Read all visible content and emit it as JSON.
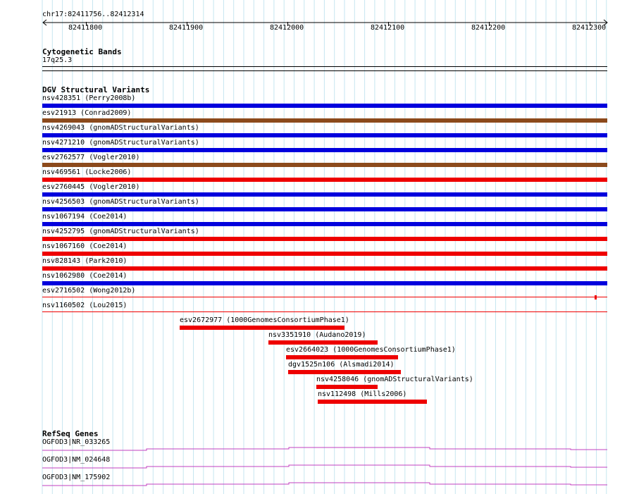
{
  "ruler": {
    "location": "chr17:82411756..82412314",
    "ticks": [
      "82411800",
      "82411900",
      "82412000",
      "82412100",
      "82412200",
      "82412300"
    ]
  },
  "cytobands": {
    "title": "Cytogenetic Bands",
    "band": "17q25.3"
  },
  "dgv": {
    "title": "DGV Structural Variants",
    "colors": {
      "blue": "#0000dd",
      "brown": "#8b4a1c",
      "red": "#ee0000"
    },
    "full_width": [
      {
        "label": "nsv428351 (Perry2008b)",
        "color": "blue"
      },
      {
        "label": "esv21913 (Conrad2009)",
        "color": "brown"
      },
      {
        "label": "nsv4269043 (gnomADStructuralVariants)",
        "color": "blue"
      },
      {
        "label": "nsv4271210 (gnomADStructuralVariants)",
        "color": "blue"
      },
      {
        "label": "esv2762577 (Vogler2010)",
        "color": "brown"
      },
      {
        "label": "nsv469561 (Locke2006)",
        "color": "red"
      },
      {
        "label": "esv2760445 (Vogler2010)",
        "color": "blue"
      },
      {
        "label": "nsv4256503 (gnomADStructuralVariants)",
        "color": "blue"
      },
      {
        "label": "nsv1067194 (Coe2014)",
        "color": "blue"
      },
      {
        "label": "nsv4252795 (gnomADStructuralVariants)",
        "color": "red"
      },
      {
        "label": "nsv1067160 (Coe2014)",
        "color": "red"
      },
      {
        "label": "nsv828143 (Park2010)",
        "color": "red"
      },
      {
        "label": "nsv1062980 (Coe2014)",
        "color": "blue"
      },
      {
        "label": "esv2716502 (Wong2012b)",
        "color": "thin-red"
      },
      {
        "label": "nsv1160502 (Lou2015)",
        "color": "thin-red"
      }
    ],
    "partial": [
      {
        "label": "esv2672977 (1000GenomesConsortiumPhase1)"
      },
      {
        "label": "nsv3351910 (Audano2019)"
      },
      {
        "label": "esv2664023 (1000GenomesConsortiumPhase1)"
      },
      {
        "label": "dgv1525n106 (Alsmadi2014)"
      },
      {
        "label": "nsv4258046 (gnomADStructuralVariants)"
      },
      {
        "label": "nsv112498 (Mills2006)"
      }
    ]
  },
  "refseq": {
    "title": "RefSeq Genes",
    "genes": [
      {
        "label": "OGFOD3|NR_033265"
      },
      {
        "label": "OGFOD3|NM_024648"
      },
      {
        "label": "OGFOD3|NM_175902"
      }
    ]
  }
}
